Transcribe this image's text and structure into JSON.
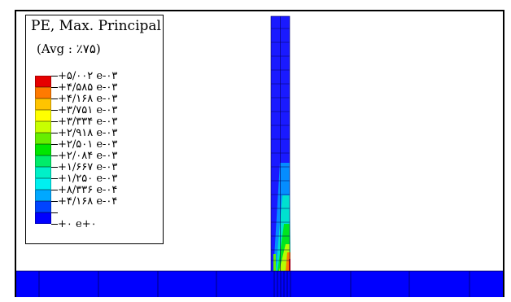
{
  "legend": {
    "title": "PE, Max. Principal",
    "subtitle": "(Avg : ٪۷۵)",
    "levels": [
      {
        "label": "+۵/۰۰۲ e-۰۳",
        "color": "#e60000"
      },
      {
        "label": "+۴/۵۸۵ e-۰۳",
        "color": "#ff7a00"
      },
      {
        "label": "+۴/۱۶۸ e-۰۳",
        "color": "#ffc400"
      },
      {
        "label": "+۳/۷۵۱ e-۰۳",
        "color": "#ffff00"
      },
      {
        "label": "+۳/۳۳۴ e-۰۳",
        "color": "#c8ff00"
      },
      {
        "label": "+۲/۹۱۸ e-۰۳",
        "color": "#66ee00"
      },
      {
        "label": "+۲/۵۰۱ e-۰۳",
        "color": "#00e600"
      },
      {
        "label": "+۲/۰۸۴ e-۰۳",
        "color": "#00ec6a"
      },
      {
        "label": "+۱/۶۶۷ e-۰۳",
        "color": "#00f0c8"
      },
      {
        "label": "+۱/۲۵۰ e-۰۳",
        "color": "#00f0f0"
      },
      {
        "label": "+۸/۳۳۶ e-۰۴",
        "color": "#00a8ff"
      },
      {
        "label": "+۴/۱۶۸ e-۰۴",
        "color": "#0044ff"
      },
      {
        "label": "+۰ e+۰",
        "color": "#0000ff"
      }
    ]
  },
  "colors": {
    "base_fill": "#0000ff",
    "column_fill": "#1a1aff",
    "mesh_line": "#000060"
  }
}
